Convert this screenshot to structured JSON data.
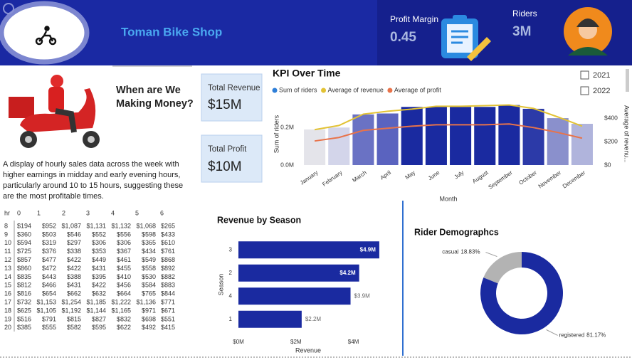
{
  "header": {
    "title": "Toman Bike Shop",
    "kpis": [
      {
        "label": "Profit Margin",
        "value": "0.45"
      },
      {
        "label": "Riders",
        "value": "3M"
      }
    ]
  },
  "cards": [
    {
      "label": "Total Revenue",
      "value": "$15M"
    },
    {
      "label": "Total Profit",
      "value": "$10M"
    }
  ],
  "heading": "When are We Making Money?",
  "description": "A display of hourly sales data across the week with higher earnings in midday and early evening hours, particularly around 10 to 15 hours, suggesting these are the most profitable times.",
  "filters": [
    "2021",
    "2022"
  ],
  "table": {
    "header": [
      "hr",
      "0",
      "1",
      "2",
      "3",
      "4",
      "5",
      "6"
    ],
    "rows": [
      [
        "8",
        "$194",
        "$952",
        "$1,087",
        "$1,131",
        "$1,132",
        "$1,068",
        "$265"
      ],
      [
        "9",
        "$360",
        "$503",
        "$546",
        "$552",
        "$556",
        "$598",
        "$433"
      ],
      [
        "10",
        "$594",
        "$319",
        "$297",
        "$306",
        "$306",
        "$365",
        "$610"
      ],
      [
        "11",
        "$725",
        "$376",
        "$338",
        "$353",
        "$367",
        "$434",
        "$761"
      ],
      [
        "12",
        "$857",
        "$477",
        "$422",
        "$449",
        "$461",
        "$549",
        "$868"
      ],
      [
        "13",
        "$860",
        "$472",
        "$422",
        "$431",
        "$455",
        "$558",
        "$892"
      ],
      [
        "14",
        "$835",
        "$443",
        "$388",
        "$395",
        "$410",
        "$530",
        "$882"
      ],
      [
        "15",
        "$812",
        "$466",
        "$431",
        "$422",
        "$456",
        "$584",
        "$883"
      ],
      [
        "16",
        "$816",
        "$654",
        "$662",
        "$632",
        "$664",
        "$765",
        "$844"
      ],
      [
        "17",
        "$732",
        "$1,153",
        "$1,254",
        "$1,185",
        "$1,222",
        "$1,136",
        "$771"
      ],
      [
        "18",
        "$625",
        "$1,105",
        "$1,192",
        "$1,144",
        "$1,165",
        "$971",
        "$671"
      ],
      [
        "19",
        "$516",
        "$791",
        "$815",
        "$827",
        "$832",
        "$698",
        "$551"
      ],
      [
        "20",
        "$385",
        "$555",
        "$582",
        "$595",
        "$622",
        "$492",
        "$415"
      ]
    ]
  },
  "chart_data": [
    {
      "type": "combo",
      "title": "KPI Over Time",
      "categories": [
        "January",
        "February",
        "March",
        "April",
        "May",
        "June",
        "July",
        "August",
        "September",
        "October",
        "November",
        "December"
      ],
      "x_label": "Month",
      "y_label": "Sum of riders",
      "y2_label": "Average of revenu...",
      "ylim": [
        0,
        330000
      ],
      "yticks": [
        {
          "value": 0,
          "label": "0.0M"
        },
        {
          "value": 200000,
          "label": "0.2M"
        }
      ],
      "y2lim": [
        0,
        530
      ],
      "y2ticks": [
        {
          "value": 0,
          "label": "$0"
        },
        {
          "value": 200,
          "label": "$200"
        },
        {
          "value": 400,
          "label": "$400"
        }
      ],
      "legend": "top-left",
      "series": [
        {
          "name": "Sum of riders",
          "type": "bar",
          "color": "#2f7fd8",
          "colors": [
            "#e4e4ea",
            "#d3d5ea",
            "#6a72c4",
            "#5a63bf",
            "#1a2aa0",
            "#1a2aa0",
            "#1a2aa0",
            "#1a2aa0",
            "#1a2aa0",
            "#2c3aa8",
            "#8a90cc",
            "#b0b4dc"
          ],
          "values": [
            190000,
            200000,
            270000,
            275000,
            310000,
            310000,
            310000,
            310000,
            320000,
            300000,
            250000,
            220000
          ]
        },
        {
          "name": "Average of revenue",
          "type": "line",
          "axis": "y2",
          "color": "#e2c234",
          "values": [
            303,
            339,
            436,
            461,
            479,
            503,
            503,
            509,
            515,
            485,
            412,
            333
          ]
        },
        {
          "name": "Average of profit",
          "type": "line",
          "axis": "y2",
          "color": "#e8734a",
          "values": [
            206,
            236,
            297,
            315,
            333,
            345,
            345,
            345,
            352,
            321,
            279,
            230
          ]
        }
      ]
    },
    {
      "type": "hbar",
      "title": "Revenue by Season",
      "categories": [
        "3",
        "2",
        "4",
        "1"
      ],
      "values": [
        4900000,
        4200000,
        3900000,
        2200000
      ],
      "value_labels": [
        "$4.9M",
        "$4.2M",
        "$3.9M",
        "$2.2M"
      ],
      "color": "#1a2aa0",
      "xlim": [
        0,
        5100000
      ],
      "xticks": [
        {
          "value": 0,
          "label": "$0M"
        },
        {
          "value": 2000000,
          "label": "$2M"
        },
        {
          "value": 4000000,
          "label": "$4M"
        }
      ],
      "x_label": "Revenue",
      "y_label": "Season"
    },
    {
      "type": "donut",
      "title": "Rider Demographcs",
      "categories": [
        "casual",
        "registered"
      ],
      "values": [
        18.83,
        81.17
      ],
      "value_labels": [
        "18.83%",
        "81.17%"
      ],
      "colors": [
        "#b3b3b3",
        "#1a2aa0"
      ]
    }
  ]
}
